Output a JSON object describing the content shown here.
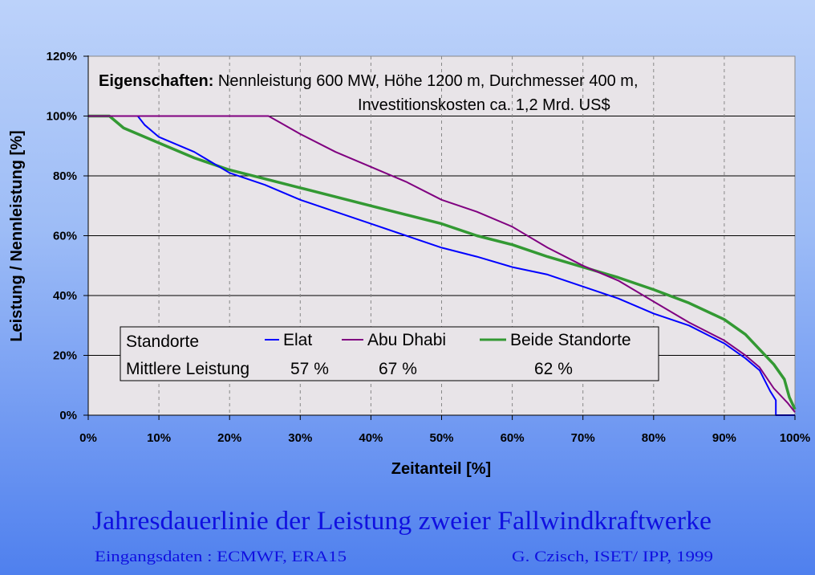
{
  "chart_data": {
    "type": "line",
    "xlabel": "Zeitanteil [%]",
    "ylabel": "Leistung / Nennleistung [%]",
    "xlim": [
      0,
      100
    ],
    "ylim": [
      0,
      120
    ],
    "x_ticks": [
      "0%",
      "10%",
      "20%",
      "30%",
      "40%",
      "50%",
      "60%",
      "70%",
      "80%",
      "90%",
      "100%"
    ],
    "y_ticks": [
      "0%",
      "20%",
      "40%",
      "60%",
      "80%",
      "100%",
      "120%"
    ],
    "grid": "horizontal solid, vertical dashed",
    "legend_placement": "bottom-left",
    "annotation": {
      "bold": "Eigenschaften:",
      "line1": "Nennleistung 600 MW, Höhe 1200 m, Durchmesser 400 m,",
      "line2": "Investitionskosten ca. 1,2 Mrd. US$"
    },
    "legend": {
      "row1_label": "Standorte",
      "row2_label": "Mittlere Leistung",
      "means": [
        "57 %",
        "67 %",
        "62 %"
      ]
    },
    "series": [
      {
        "name": "Elat",
        "color": "#0000ff",
        "x": [
          0,
          7,
          8,
          10,
          15,
          20,
          25,
          30,
          35,
          40,
          45,
          50,
          55,
          60,
          65,
          70,
          75,
          80,
          85,
          90,
          93,
          95,
          96.5,
          97.3,
          97.3,
          100
        ],
        "y": [
          100,
          100,
          97,
          93,
          88,
          81,
          77,
          72,
          68,
          64,
          60,
          56,
          53,
          49.5,
          47,
          43,
          39,
          34,
          30,
          24,
          19,
          15,
          8,
          5,
          0,
          0
        ]
      },
      {
        "name": "Abu Dhabi",
        "color": "#800080",
        "x": [
          0,
          25.5,
          27,
          30,
          35,
          40,
          45,
          50,
          55,
          60,
          65,
          70,
          75,
          80,
          85,
          90,
          93,
          95,
          97,
          99,
          100
        ],
        "y": [
          100,
          100,
          98,
          94,
          88,
          83,
          78,
          72,
          68,
          63,
          56,
          50,
          45,
          38,
          31,
          25,
          20,
          16,
          9,
          4,
          1
        ]
      },
      {
        "name": "Beide Standorte",
        "color": "#339933",
        "x": [
          0,
          3,
          5,
          10,
          15,
          20,
          25,
          30,
          35,
          40,
          45,
          50,
          55,
          60,
          65,
          70,
          75,
          80,
          85,
          90,
          93,
          95,
          97,
          98.5,
          99.2,
          100
        ],
        "y": [
          100,
          100,
          96,
          91,
          86,
          82,
          79,
          76,
          73,
          70,
          67,
          64,
          60,
          57,
          53,
          49.5,
          46,
          42,
          37.5,
          32,
          27,
          22,
          17,
          12,
          6,
          2
        ]
      }
    ]
  },
  "caption": {
    "title": "Jahresdauerlinie der Leistung zweier Fallwindkraftwerke",
    "source": "Eingangsdaten : ECMWF, ERA15",
    "author": "G.  Czisch, ISET/ IPP, 1999"
  }
}
